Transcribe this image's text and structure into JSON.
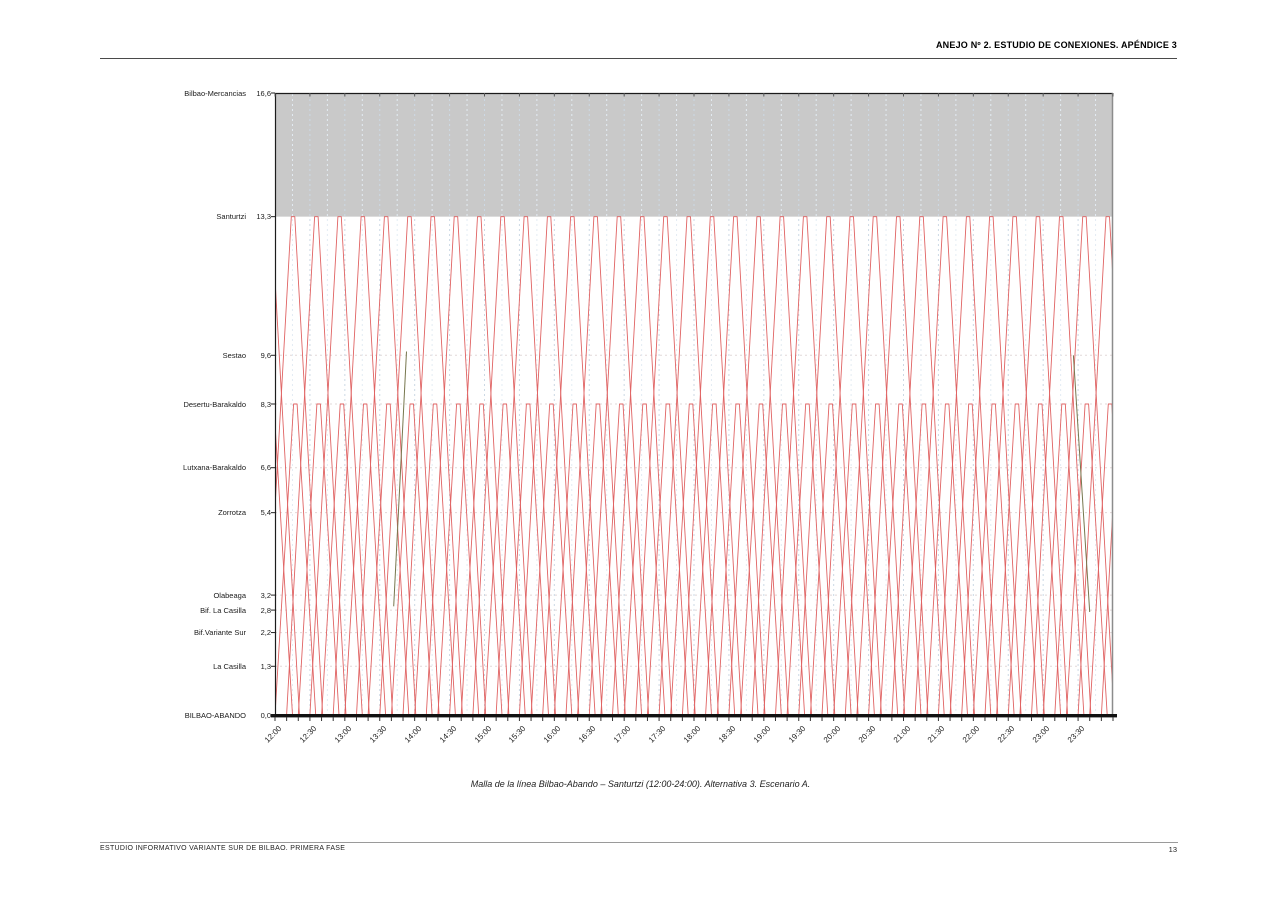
{
  "page": {
    "header": "ANEJO Nº 2. ESTUDIO DE CONEXIONES. APÉNDICE 3",
    "caption": "Malla de la línea Bilbao-Abando – Santurtzi (12:00-24:00). Alternativa 3. Escenario A.",
    "footer_left": "ESTUDIO INFORMATIVO VARIANTE SUR DE BILBAO. PRIMERA FASE",
    "page_number": "13"
  },
  "chart_data": {
    "type": "line",
    "subtype": "time-distance-train-graph",
    "title": "Malla de la línea Bilbao-Abando – Santurtzi (12:00-24:00). Alternativa 3. Escenario A.",
    "x_axis": {
      "unit": "time",
      "start": "12:00",
      "end": "24:00",
      "start_min": 0,
      "end_min": 720,
      "major_tick_min": 30,
      "minor_tick_min": 10,
      "tick_labels": [
        "12:00",
        "12:30",
        "13:00",
        "13:30",
        "14:00",
        "14:30",
        "15:00",
        "15:30",
        "16:00",
        "16:30",
        "17:00",
        "17:30",
        "18:00",
        "18:30",
        "19:00",
        "19:30",
        "20:00",
        "20:30",
        "21:00",
        "21:30",
        "22:00",
        "22:30",
        "23:00",
        "23:30"
      ]
    },
    "y_axis": {
      "unit": "km",
      "min": 0,
      "max": 16.6,
      "stations": [
        {
          "name": "Bilbao-Mercancias",
          "km": 16.6,
          "km_label": "16,6"
        },
        {
          "name": "Santurtzi",
          "km": 13.3,
          "km_label": "13,3"
        },
        {
          "name": "Sestao",
          "km": 9.6,
          "km_label": "9,6"
        },
        {
          "name": "Desertu-Barakaldo",
          "km": 8.3,
          "km_label": "8,3"
        },
        {
          "name": "Lutxana-Barakaldo",
          "km": 6.6,
          "km_label": "6,6"
        },
        {
          "name": "Zorrotza",
          "km": 5.4,
          "km_label": "5,4"
        },
        {
          "name": "Olabeaga",
          "km": 3.2,
          "km_label": "3,2"
        },
        {
          "name": "Bif. La Casilla",
          "km": 2.8,
          "km_label": "2,8"
        },
        {
          "name": "Bif.Variante Sur",
          "km": 2.2,
          "km_label": "2,2"
        },
        {
          "name": "La Casilla",
          "km": 1.3,
          "km_label": "1,3"
        },
        {
          "name": "BILBAO-ABANDO",
          "km": 0.0,
          "km_label": "0,0"
        }
      ]
    },
    "shaded_band": {
      "from_km": 13.3,
      "to_km": 16.6,
      "color": "#c9c9c9"
    },
    "train_services": [
      {
        "name": "Bilbao-Abando - Santurtzi",
        "color": "#e06363",
        "origin_km": 0,
        "turn_km": 13.3,
        "first_dep_min": -30,
        "headway_min": 20,
        "trips": 39,
        "climb_min": 24,
        "turn_dwell_min": 3,
        "descend_min": 24
      },
      {
        "name": "Bilbao-Abando - Desertu-Barakaldo",
        "color": "#e06363",
        "origin_km": 0,
        "turn_km": 8.3,
        "first_dep_min": -20,
        "headway_min": 20,
        "trips": 39,
        "climb_min": 16,
        "turn_dwell_min": 3,
        "descend_min": 16
      }
    ],
    "other_trains": [
      {
        "color": "#77774e",
        "points_t_km": [
          [
            102,
            2.9
          ],
          [
            113,
            9.7
          ]
        ]
      },
      {
        "color": "#77774e",
        "points_t_km": [
          [
            686,
            9.6
          ],
          [
            700,
            2.75
          ]
        ]
      }
    ],
    "colors": {
      "train_line": "#e06363",
      "other_train": "#77774e",
      "band": "#c9c9c9",
      "grid_vertical_major": "#ccd9e5",
      "grid_vertical_minor": "#e3ecf4",
      "grid_horizontal": "#e2d8d8",
      "axis": "#1c1c1c",
      "right_border": "#8c8c8c"
    },
    "grid": {
      "vertical_dashed": true,
      "horizontal_dashed_at_stations": true
    }
  }
}
